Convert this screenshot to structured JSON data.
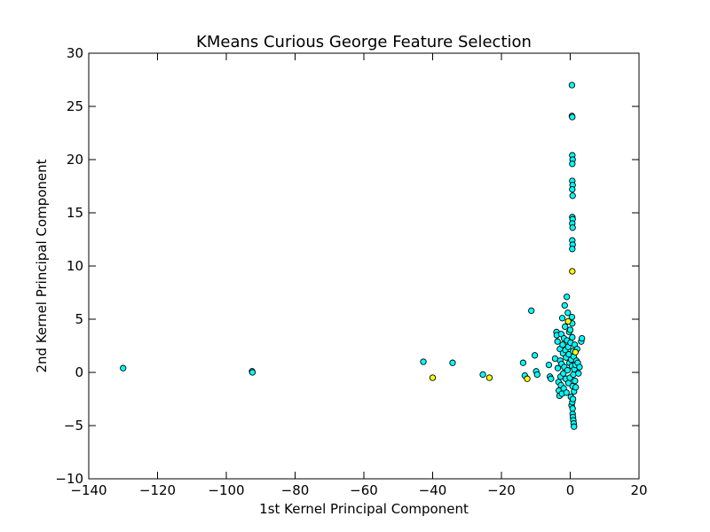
{
  "chart_data": {
    "type": "scatter",
    "title": "KMeans Curious George Feature Selection",
    "xlabel": "1st Kernel Principal Component",
    "ylabel": "2nd Kernel Principal Component",
    "xlim": [
      -140,
      20
    ],
    "ylim": [
      -10,
      30
    ],
    "xticks": [
      -140,
      -120,
      -100,
      -80,
      -60,
      -40,
      -20,
      0,
      20
    ],
    "yticks": [
      -10,
      -5,
      0,
      5,
      10,
      15,
      20,
      25,
      30
    ],
    "grid": false,
    "legend": "none",
    "colors": {
      "cyan": "#00ffff",
      "yellow": "#ffff00",
      "edge": "#000000"
    },
    "series": [
      {
        "color": "#00ffff",
        "points": [
          [
            -130,
            0.4
          ],
          [
            -92.5,
            0.1
          ],
          [
            -92.4,
            0.0
          ],
          [
            -42.7,
            1.0
          ],
          [
            -34.2,
            0.9
          ],
          [
            -25.4,
            -0.2
          ],
          [
            -13.7,
            0.9
          ],
          [
            -13.2,
            -0.3
          ],
          [
            -11.3,
            5.8
          ],
          [
            -10.3,
            1.6
          ],
          [
            -9.9,
            0.1
          ],
          [
            -9.6,
            -0.2
          ],
          [
            -6.2,
            0.7
          ],
          [
            -5.9,
            -0.4
          ],
          [
            -5.6,
            -0.6
          ],
          [
            -4.4,
            1.3
          ],
          [
            -4.0,
            3.8
          ],
          [
            -3.9,
            3.5
          ],
          [
            -3.7,
            2.9
          ],
          [
            -3.6,
            0.4
          ],
          [
            -3.4,
            -0.9
          ],
          [
            -3.3,
            -1.7
          ],
          [
            -3.1,
            -2.2
          ],
          [
            -3.0,
            2.2
          ],
          [
            -2.9,
            1.1
          ],
          [
            -2.8,
            -0.4
          ],
          [
            -2.7,
            -1.2
          ],
          [
            -2.6,
            3.6
          ],
          [
            -2.5,
            0.8
          ],
          [
            -2.4,
            -2.0
          ],
          [
            -2.3,
            5.1
          ],
          [
            -2.2,
            2.6
          ],
          [
            -2.1,
            1.8
          ],
          [
            -2.0,
            -0.1
          ],
          [
            -1.9,
            -1.5
          ],
          [
            -1.8,
            3.2
          ],
          [
            -1.7,
            0.5
          ],
          [
            -1.6,
            6.3
          ],
          [
            -1.5,
            4.3
          ],
          [
            -1.4,
            2.1
          ],
          [
            -1.3,
            -0.6
          ],
          [
            -1.2,
            1.4
          ],
          [
            -1.1,
            -1.9
          ],
          [
            -1.0,
            7.1
          ],
          [
            -0.9,
            3.0
          ],
          [
            -0.8,
            0.2
          ],
          [
            -0.7,
            5.6
          ],
          [
            -0.6,
            2.4
          ],
          [
            -0.5,
            -1.0
          ],
          [
            -0.4,
            1.7
          ],
          [
            -0.3,
            3.8
          ],
          [
            -0.2,
            0.9
          ],
          [
            -0.1,
            -0.5
          ],
          [
            0.0,
            4.0
          ],
          [
            0.1,
            2.8
          ],
          [
            0.2,
            -2.3
          ],
          [
            0.3,
            1.2
          ],
          [
            0.4,
            -3.1
          ],
          [
            0.5,
            0.6
          ],
          [
            0.6,
            3.3
          ],
          [
            0.7,
            -1.3
          ],
          [
            0.8,
            2.0
          ],
          [
            0.9,
            -0.2
          ],
          [
            1.0,
            1.5
          ],
          [
            1.1,
            -1.8
          ],
          [
            1.2,
            0.3
          ],
          [
            1.3,
            2.6
          ],
          [
            1.4,
            -0.8
          ],
          [
            1.5,
            0.7
          ],
          [
            1.6,
            -1.4
          ],
          [
            1.8,
            1.1
          ],
          [
            2.0,
            2.2
          ],
          [
            2.2,
            0.9
          ],
          [
            2.4,
            -0.1
          ],
          [
            2.7,
            0.5
          ],
          [
            3.2,
            2.9
          ],
          [
            3.4,
            3.2
          ],
          [
            0.5,
            27.0
          ],
          [
            0.5,
            24.1
          ],
          [
            0.6,
            24.0
          ],
          [
            0.6,
            20.4
          ],
          [
            0.7,
            20.0
          ],
          [
            0.6,
            19.6
          ],
          [
            0.6,
            18.0
          ],
          [
            0.7,
            17.6
          ],
          [
            0.6,
            17.2
          ],
          [
            0.7,
            16.6
          ],
          [
            0.6,
            14.6
          ],
          [
            0.7,
            14.4
          ],
          [
            0.6,
            14.0
          ],
          [
            0.7,
            13.6
          ],
          [
            0.6,
            12.4
          ],
          [
            0.7,
            12.0
          ],
          [
            0.6,
            11.6
          ],
          [
            0.5,
            5.2
          ],
          [
            0.6,
            4.6
          ],
          [
            0.7,
            -3.9
          ],
          [
            0.8,
            -4.2
          ],
          [
            0.9,
            -4.5
          ],
          [
            1.0,
            -4.8
          ],
          [
            1.1,
            -5.1
          ],
          [
            0.6,
            -2.8
          ],
          [
            0.7,
            -3.4
          ],
          [
            0.8,
            -2.5
          ]
        ]
      },
      {
        "color": "#ffff00",
        "points": [
          [
            -40.0,
            -0.5
          ],
          [
            -23.5,
            -0.5
          ],
          [
            -12.5,
            -0.6
          ],
          [
            0.6,
            9.5
          ],
          [
            1.5,
            1.9
          ],
          [
            -0.6,
            4.8
          ]
        ]
      }
    ]
  }
}
